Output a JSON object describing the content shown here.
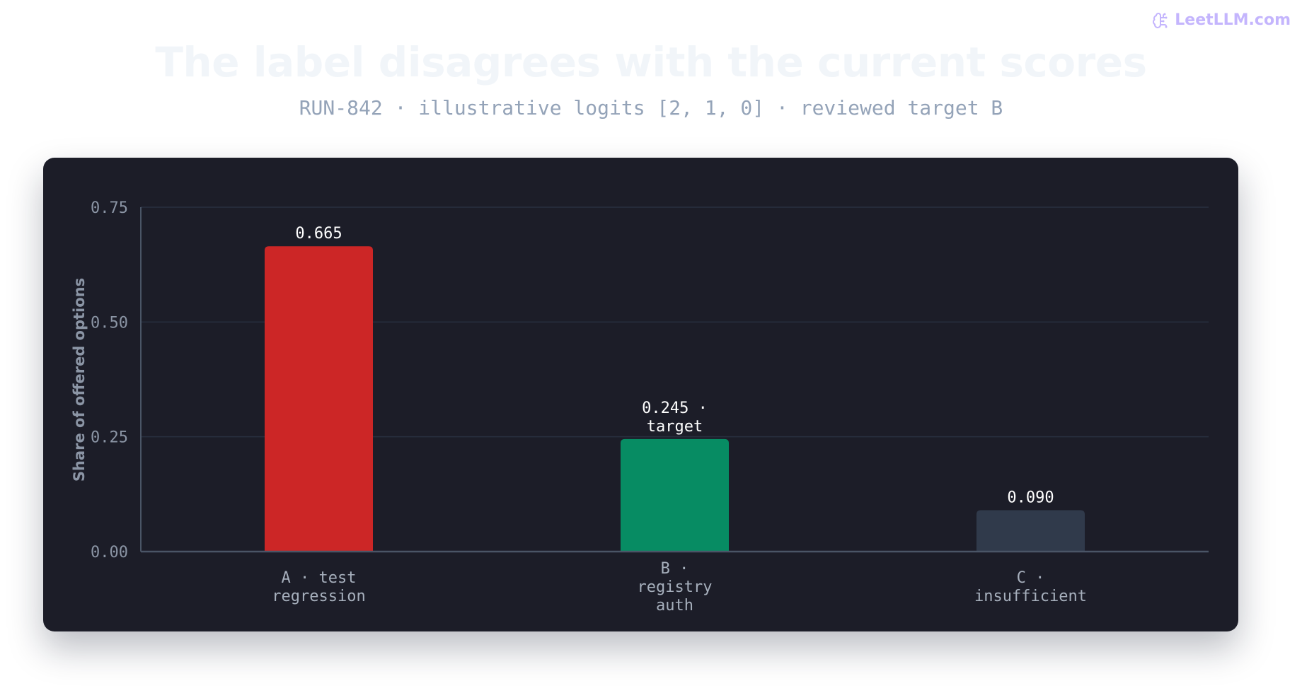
{
  "brand": {
    "text": "LeetLLM.com",
    "icon": "brain-circuit-icon",
    "color": "#c4b5fd"
  },
  "page": {
    "title": "The label disagrees with the current scores",
    "subtitle": "RUN-842 · illustrative logits [2, 1, 0] · reviewed target B"
  },
  "chart_data": {
    "type": "bar",
    "title": "The label disagrees with the current scores",
    "subtitle": "RUN-842 · illustrative logits [2, 1, 0] · reviewed target B",
    "xlabel": "",
    "ylabel": "Share of offered options",
    "ylim": [
      0,
      0.75
    ],
    "yticks": [
      "0.00",
      "0.25",
      "0.50",
      "0.75"
    ],
    "ytick_values": [
      0,
      0.25,
      0.5,
      0.75
    ],
    "grid": true,
    "legend": "none",
    "categories": [
      [
        "A · test",
        "regression"
      ],
      [
        "B ·",
        "registry",
        "auth"
      ],
      [
        "C ·",
        "insufficient"
      ]
    ],
    "values": [
      0.665,
      0.245,
      0.09
    ],
    "value_labels": [
      [
        "0.665"
      ],
      [
        "0.245 ·",
        "target"
      ],
      [
        "0.090"
      ]
    ],
    "colors": [
      "#cc2626",
      "#078c63",
      "#303a4b"
    ],
    "theme": {
      "background": "#1c1d28",
      "grid": "#283040",
      "axis": "#4a5566"
    }
  }
}
